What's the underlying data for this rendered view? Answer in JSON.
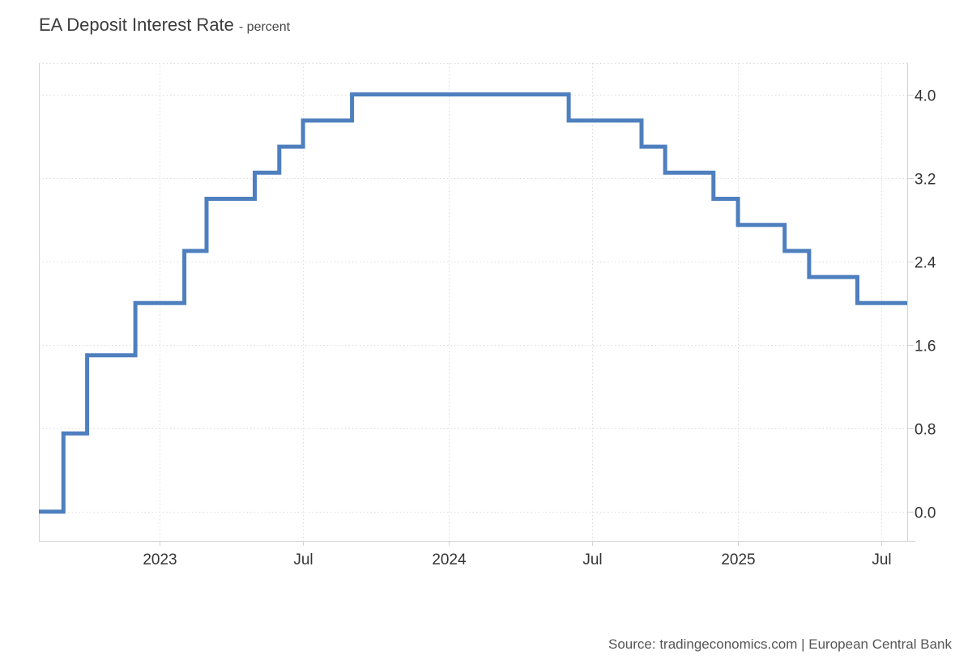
{
  "page": {
    "subtitle": "- percent",
    "source": "Source: tradingeconomics.com | European Central Bank"
  },
  "chart_data": {
    "type": "line",
    "step": true,
    "title": "EA Deposit Interest Rate",
    "subtitle_unit": "percent",
    "xlabel": "",
    "ylabel": "",
    "legend": "none",
    "grid": "dotted",
    "xlim": [
      "2022-08-01",
      "2025-08-03"
    ],
    "ylim": [
      -0.28,
      4.3
    ],
    "y_ticks": [
      {
        "value": 0.0,
        "label": "0.0"
      },
      {
        "value": 0.8,
        "label": "0.8"
      },
      {
        "value": 1.6,
        "label": "1.6"
      },
      {
        "value": 2.4,
        "label": "2.4"
      },
      {
        "value": 3.2,
        "label": "3.2"
      },
      {
        "value": 4.0,
        "label": "4.0"
      }
    ],
    "x_ticks": [
      {
        "date": "2023-01-01",
        "label": "2023"
      },
      {
        "date": "2023-07-01",
        "label": "Jul"
      },
      {
        "date": "2024-01-01",
        "label": "2024"
      },
      {
        "date": "2024-07-01",
        "label": "Jul"
      },
      {
        "date": "2025-01-01",
        "label": "2025"
      },
      {
        "date": "2025-07-01",
        "label": "Jul"
      }
    ],
    "colors": {
      "line": "#4e7fbe",
      "grid": "#dcdcdc",
      "axis": "#d4d4d4",
      "tick_label": "#333333"
    },
    "series": [
      {
        "name": "EA Deposit Interest Rate",
        "unit": "percent",
        "points": [
          {
            "date": "2022-08-01",
            "value": 0.0
          },
          {
            "date": "2022-09-01",
            "value": 0.75
          },
          {
            "date": "2022-10-01",
            "value": 1.5
          },
          {
            "date": "2022-12-01",
            "value": 2.0
          },
          {
            "date": "2023-02-01",
            "value": 2.5
          },
          {
            "date": "2023-03-01",
            "value": 3.0
          },
          {
            "date": "2023-05-01",
            "value": 3.25
          },
          {
            "date": "2023-06-01",
            "value": 3.5
          },
          {
            "date": "2023-07-01",
            "value": 3.75
          },
          {
            "date": "2023-09-01",
            "value": 4.0
          },
          {
            "date": "2024-06-01",
            "value": 3.75
          },
          {
            "date": "2024-09-01",
            "value": 3.5
          },
          {
            "date": "2024-10-01",
            "value": 3.25
          },
          {
            "date": "2024-12-01",
            "value": 3.0
          },
          {
            "date": "2025-01-01",
            "value": 2.75
          },
          {
            "date": "2025-03-01",
            "value": 2.5
          },
          {
            "date": "2025-04-01",
            "value": 2.25
          },
          {
            "date": "2025-06-01",
            "value": 2.0
          }
        ]
      }
    ]
  }
}
